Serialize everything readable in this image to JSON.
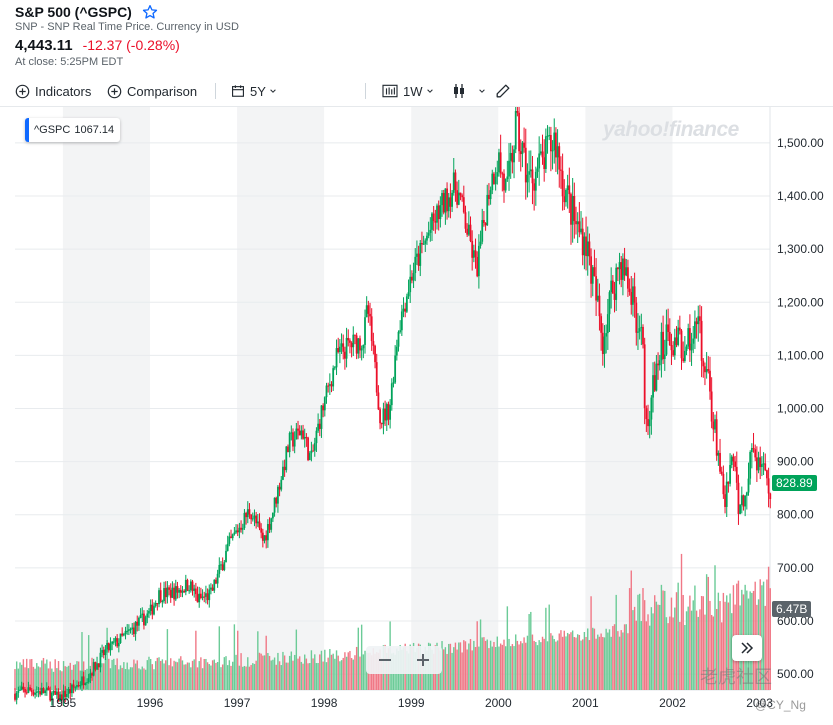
{
  "header": {
    "title": "S&P 500 (^GSPC)",
    "subtitle": "SNP - SNP Real Time Price. Currency in USD",
    "price": "4,443.11",
    "change": "-12.37 (-0.28%)",
    "close_info": "At close: 5:25PM EDT"
  },
  "toolbar": {
    "indicators_label": "Indicators",
    "comparison_label": "Comparison",
    "range_label": "5Y",
    "interval_label": "1W"
  },
  "legend": {
    "symbol": "^GSPC",
    "value": "1067.14"
  },
  "branding": {
    "logo_text": "yahoo!finance"
  },
  "badges": {
    "last_price": "828.89",
    "last_volume": "6.47B"
  },
  "watermark": {
    "site": "老虎社区",
    "user": "@CY_Ng"
  },
  "colors": {
    "up": "#00a35a",
    "down": "#eb0f29",
    "accent": "#0f69ff",
    "band": "#f3f4f5",
    "volume_up": "#6bcb97",
    "volume_down": "#f07886"
  },
  "icons": {
    "star": "star-outline-icon",
    "indicators": "plus-circle-icon",
    "comparison": "plus-circle-icon",
    "range": "calendar-icon",
    "interval": "bar-chart-icon",
    "chart_type": "candlestick-icon",
    "draw": "pencil-icon",
    "zoom_out": "minus-icon",
    "zoom_in": "plus-icon",
    "expand": "double-chevron-right-icon"
  },
  "chart_data": {
    "type": "candlestick",
    "interval": "1W",
    "range": "5Y",
    "x_ticks": [
      "1995",
      "1996",
      "1997",
      "1998",
      "1999",
      "2000",
      "2001",
      "2002",
      "2003"
    ],
    "y_ticks": [
      "500.00",
      "600.00",
      "700.00",
      "800.00",
      "900.00",
      "1,000.00",
      "1,100.00",
      "1,200.00",
      "1,300.00",
      "1,400.00",
      "1,500.00"
    ],
    "ylim": [
      470,
      1545
    ],
    "xlim": [
      1994.45,
      2003.12
    ],
    "grid": true,
    "path": [
      [
        1994.45,
        463
      ],
      [
        1994.6,
        470
      ],
      [
        1994.8,
        466
      ],
      [
        1994.95,
        455
      ],
      [
        1995.1,
        470
      ],
      [
        1995.3,
        500
      ],
      [
        1995.5,
        545
      ],
      [
        1995.7,
        570
      ],
      [
        1995.9,
        600
      ],
      [
        1996.0,
        615
      ],
      [
        1996.1,
        650
      ],
      [
        1996.3,
        655
      ],
      [
        1996.45,
        670
      ],
      [
        1996.55,
        640
      ],
      [
        1996.7,
        650
      ],
      [
        1996.9,
        740
      ],
      [
        1997.0,
        770
      ],
      [
        1997.15,
        810
      ],
      [
        1997.3,
        750
      ],
      [
        1997.4,
        800
      ],
      [
        1997.6,
        935
      ],
      [
        1997.75,
        960
      ],
      [
        1997.85,
        900
      ],
      [
        1997.95,
        980
      ],
      [
        1998.15,
        1100
      ],
      [
        1998.3,
        1120
      ],
      [
        1998.45,
        1130
      ],
      [
        1998.5,
        1190
      ],
      [
        1998.65,
        980
      ],
      [
        1998.75,
        1000
      ],
      [
        1998.85,
        1150
      ],
      [
        1999.0,
        1250
      ],
      [
        1999.2,
        1330
      ],
      [
        1999.35,
        1380
      ],
      [
        1999.5,
        1420
      ],
      [
        1999.55,
        1400
      ],
      [
        1999.75,
        1260
      ],
      [
        1999.9,
        1420
      ],
      [
        2000.0,
        1470
      ],
      [
        2000.1,
        1400
      ],
      [
        2000.2,
        1530
      ],
      [
        2000.35,
        1430
      ],
      [
        2000.5,
        1460
      ],
      [
        2000.65,
        1510
      ],
      [
        2000.75,
        1420
      ],
      [
        2000.9,
        1340
      ],
      [
        2001.0,
        1320
      ],
      [
        2001.1,
        1230
      ],
      [
        2001.2,
        1130
      ],
      [
        2001.3,
        1220
      ],
      [
        2001.4,
        1280
      ],
      [
        2001.55,
        1200
      ],
      [
        2001.65,
        1130
      ],
      [
        2001.7,
        970
      ],
      [
        2001.85,
        1100
      ],
      [
        2001.95,
        1150
      ],
      [
        2002.0,
        1130
      ],
      [
        2002.15,
        1120
      ],
      [
        2002.3,
        1150
      ],
      [
        2002.45,
        1000
      ],
      [
        2002.55,
        880
      ],
      [
        2002.6,
        820
      ],
      [
        2002.7,
        910
      ],
      [
        2002.75,
        810
      ],
      [
        2002.85,
        850
      ],
      [
        2002.9,
        910
      ],
      [
        2003.0,
        900
      ],
      [
        2003.1,
        830
      ]
    ]
  }
}
